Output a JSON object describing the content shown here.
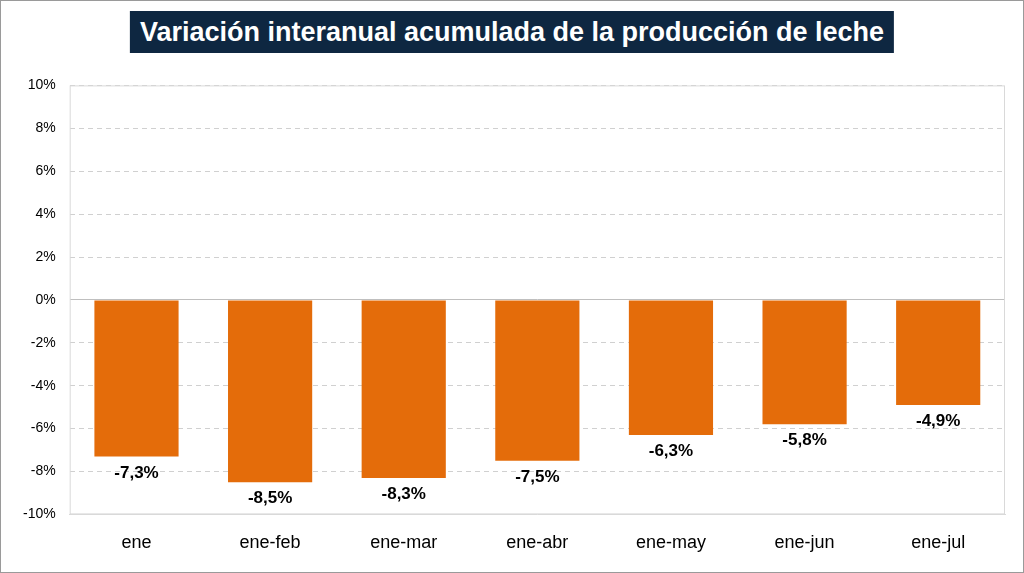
{
  "chart_data": {
    "type": "bar",
    "title": "Variación interanual acumulada de la producción de leche",
    "categories": [
      "ene",
      "ene-feb",
      "ene-mar",
      "ene-abr",
      "ene-may",
      "ene-jun",
      "ene-jul"
    ],
    "values": [
      -7.3,
      -8.5,
      -8.3,
      -7.5,
      -6.3,
      -5.8,
      -4.9
    ],
    "value_labels": [
      "-7,3%",
      "-8,5%",
      "-8,3%",
      "-7,5%",
      "-6,3%",
      "-5,8%",
      "-4,9%"
    ],
    "color": "#e46c0a",
    "ylim": [
      -10,
      10
    ],
    "yticks": [
      {
        "value": -10,
        "label": "-10%"
      },
      {
        "value": -8,
        "label": "-8%"
      },
      {
        "value": -6,
        "label": "-6%"
      },
      {
        "value": -4,
        "label": "-4%"
      },
      {
        "value": -2,
        "label": "-2%"
      },
      {
        "value": 0,
        "label": "0%"
      },
      {
        "value": 2,
        "label": "2%"
      },
      {
        "value": 4,
        "label": "4%"
      },
      {
        "value": 6,
        "label": "6%"
      },
      {
        "value": 8,
        "label": "8%"
      },
      {
        "value": 10,
        "label": "10%"
      }
    ],
    "grid": true,
    "data_labels": true
  }
}
